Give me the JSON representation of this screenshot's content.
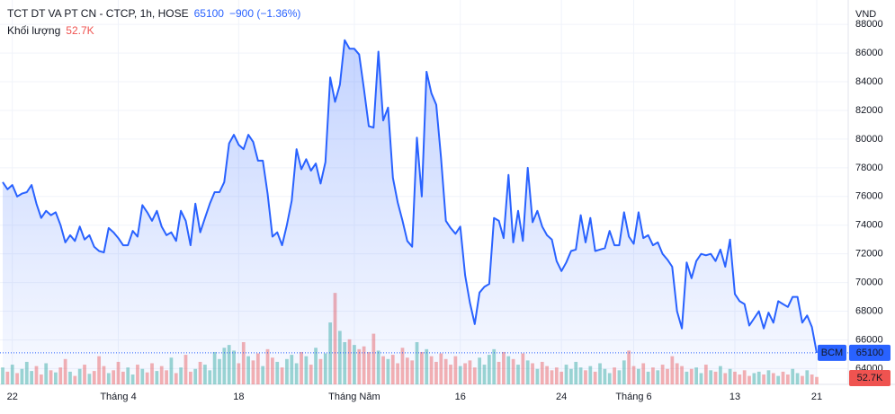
{
  "header": {
    "title": "TCT DT VA PT CN - CTCP, 1h, HOSE",
    "last": 65100,
    "change": "−900 (−1.36%)",
    "volume_title": "Khối lượng",
    "volume_label": "52.7K"
  },
  "chart_data": {
    "type": "line",
    "currency": "VND",
    "color": "#2962ff",
    "grid": true,
    "xlim": [
      0,
      169
    ],
    "xticks": [
      {
        "value": 2,
        "label": "22"
      },
      {
        "value": 24,
        "label": "Tháng 4"
      },
      {
        "value": 49,
        "label": "18"
      },
      {
        "value": 73,
        "label": "Tháng Năm"
      },
      {
        "value": 95,
        "label": "16"
      },
      {
        "value": 116,
        "label": "24"
      },
      {
        "value": 131,
        "label": "Tháng 6"
      },
      {
        "value": 152,
        "label": "13"
      },
      {
        "value": 169,
        "label": "21"
      }
    ],
    "ylim": [
      62900,
      89700
    ],
    "yticks": [
      64000,
      66000,
      68000,
      70000,
      72000,
      74000,
      76000,
      78000,
      80000,
      82000,
      84000,
      86000,
      88000
    ],
    "series": [
      {
        "name": "BCM",
        "color": "#2962ff",
        "values": [
          77000,
          76500,
          76800,
          76000,
          76200,
          76300,
          76800,
          75500,
          74500,
          75000,
          74700,
          74900,
          74000,
          72800,
          73300,
          72900,
          73900,
          73000,
          73300,
          72500,
          72200,
          72100,
          73800,
          73500,
          73100,
          72600,
          72600,
          73600,
          73200,
          75400,
          74900,
          74300,
          75000,
          73900,
          73300,
          73500,
          72900,
          75000,
          74300,
          72600,
          75500,
          73500,
          74500,
          75500,
          76300,
          76300,
          77000,
          79700,
          80300,
          79600,
          79300,
          80300,
          79800,
          78500,
          78500,
          76200,
          73200,
          73500,
          72600,
          74000,
          75700,
          79300,
          77900,
          78600,
          77800,
          78300,
          76900,
          78400,
          84300,
          82600,
          83800,
          86900,
          86300,
          86300,
          85900,
          83500,
          80900,
          80800,
          86100,
          81300,
          82200,
          77300,
          75600,
          74300,
          72900,
          72500,
          80100,
          76000,
          84700,
          83200,
          82400,
          78700,
          74300,
          73800,
          73400,
          73900,
          70500,
          68600,
          67100,
          69300,
          69700,
          69900,
          74500,
          74300,
          73100,
          77500,
          72800,
          75000,
          72900,
          78000,
          74200,
          75000,
          73900,
          73300,
          73000,
          71500,
          70800,
          71400,
          72200,
          72300,
          74700,
          72800,
          74500,
          72200,
          72300,
          72400,
          73600,
          72600,
          72600,
          74900,
          73200,
          72700,
          74900,
          73100,
          73300,
          72600,
          72800,
          72000,
          71600,
          71100,
          68000,
          66800,
          71400,
          70300,
          71500,
          72000,
          71900,
          72000,
          71500,
          72300,
          71100,
          73000,
          69200,
          68700,
          68500,
          67000,
          67500,
          68000,
          66800,
          67900,
          67200,
          68700,
          68500,
          68300,
          69000,
          69000,
          67200,
          67700,
          66900,
          65100
        ]
      },
      {
        "name": "Khối lượng",
        "type": "volume",
        "values": [
          120,
          90,
          140,
          80,
          110,
          160,
          95,
          130,
          70,
          150,
          100,
          85,
          120,
          180,
          90,
          60,
          110,
          140,
          75,
          95,
          200,
          130,
          80,
          100,
          160,
          90,
          120,
          70,
          140,
          110,
          85,
          150,
          95,
          130,
          100,
          190,
          80,
          120,
          210,
          90,
          110,
          160,
          140,
          100,
          230,
          180,
          260,
          280,
          240,
          150,
          300,
          200,
          170,
          220,
          130,
          250,
          190,
          160,
          120,
          180,
          210,
          150,
          230,
          200,
          140,
          260,
          180,
          220,
          440,
          650,
          380,
          300,
          320,
          280,
          250,
          270,
          230,
          360,
          240,
          200,
          180,
          210,
          150,
          260,
          190,
          170,
          300,
          230,
          250,
          200,
          160,
          220,
          180,
          140,
          200,
          130,
          150,
          170,
          120,
          190,
          140,
          210,
          250,
          160,
          230,
          200,
          180,
          140,
          220,
          170,
          150,
          110,
          160,
          130,
          100,
          120,
          90,
          140,
          110,
          160,
          120,
          100,
          130,
          90,
          150,
          110,
          80,
          120,
          100,
          170,
          240,
          130,
          110,
          150,
          90,
          120,
          100,
          140,
          110,
          200,
          150,
          130,
          90,
          110,
          120,
          80,
          140,
          100,
          90,
          130,
          80,
          110,
          90,
          70,
          100,
          60,
          80,
          90,
          70,
          100,
          80,
          60,
          90,
          70,
          110,
          80,
          60,
          100,
          70,
          52.7
        ]
      }
    ]
  }
}
